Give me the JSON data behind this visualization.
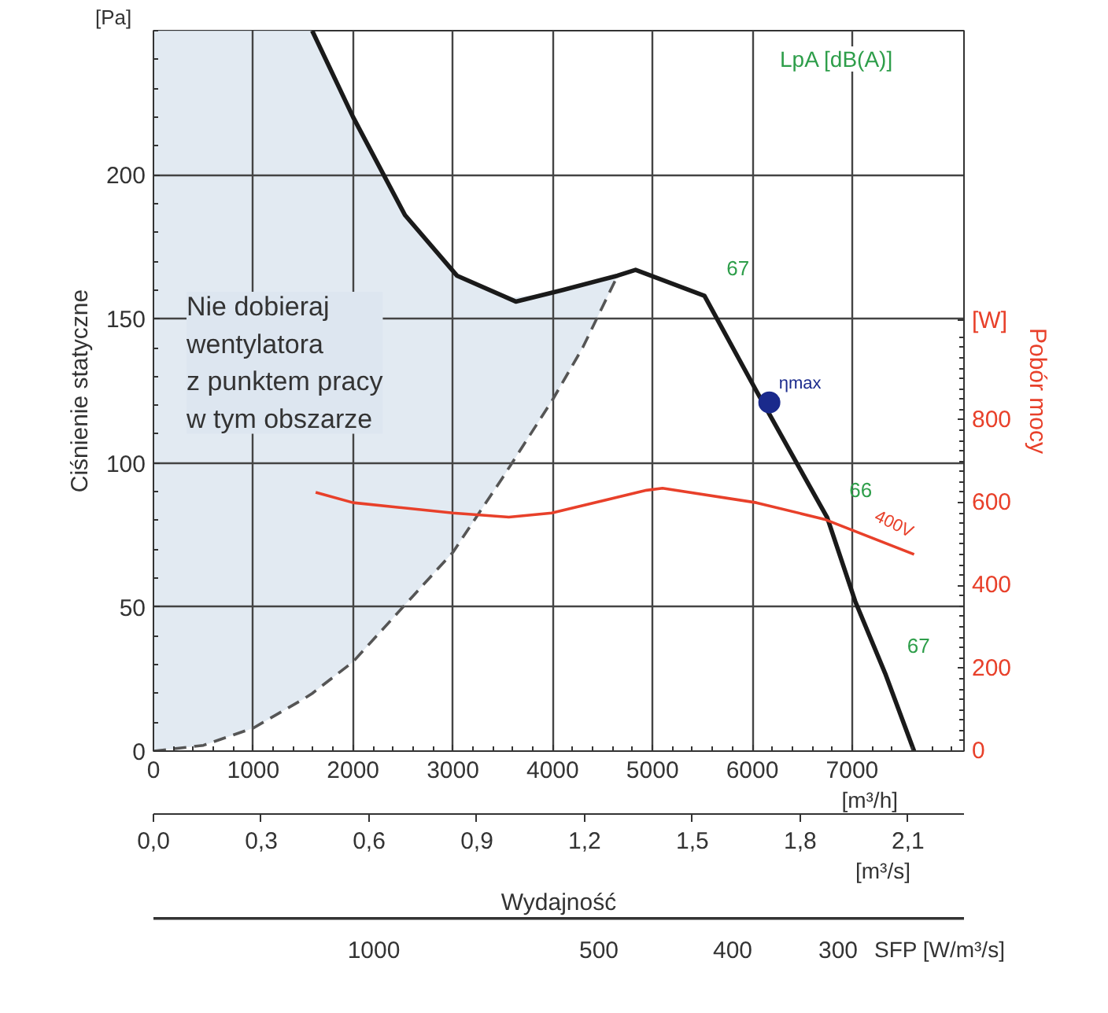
{
  "chart_data": {
    "type": "line",
    "xlabel": "Wydajność",
    "ylabel": "Ciśnienie statyczne",
    "y2label": "Pobór mocy",
    "xlim": [
      0,
      8120
    ],
    "xticks": [
      0,
      1000,
      2000,
      3000,
      4000,
      5000,
      6000,
      7000
    ],
    "x2lim": [
      0,
      2.2556
    ],
    "x2ticks": [
      {
        "value": 0,
        "label": "0,0"
      },
      {
        "value": 0.3,
        "label": "0,3"
      },
      {
        "value": 0.6,
        "label": "0,6"
      },
      {
        "value": 0.9,
        "label": "0,9"
      },
      {
        "value": 1.2,
        "label": "1,2"
      },
      {
        "value": 1.5,
        "label": "1,5"
      },
      {
        "value": 1.8,
        "label": "1,8"
      },
      {
        "value": 2.1,
        "label": "2,1"
      }
    ],
    "ylim": [
      0,
      250
    ],
    "yticks": [
      0,
      50,
      100,
      150,
      200
    ],
    "y2lim": [
      0,
      1740
    ],
    "y2ticks": [
      0,
      200,
      400,
      600,
      800
    ],
    "grid": true,
    "series": [
      {
        "color": "#555555",
        "line_style": "dashed",
        "x": [
          0,
          500,
          1000,
          1500,
          1590,
          2000,
          2500,
          3000,
          3500,
          4000,
          4300,
          4650
        ],
        "values": [
          0,
          2,
          8,
          18,
          20,
          31,
          50,
          69,
          95,
          122,
          140,
          165
        ],
        "lower": [
          0,
          2,
          8,
          18,
          20,
          31,
          50,
          69,
          95,
          122,
          140,
          165
        ],
        "upper": [
          250,
          250,
          250,
          250,
          250,
          220,
          187,
          166,
          157,
          159,
          161,
          165
        ]
      },
      {
        "color": "#1a1a1a",
        "x": [
          1590,
          2000,
          2520,
          3040,
          3630,
          4100,
          4650,
          4830,
          5520,
          6040,
          6750,
          7030,
          7330,
          7620
        ],
        "values": [
          250,
          220,
          186,
          165,
          156,
          160,
          165,
          167,
          158,
          125,
          81,
          52,
          27,
          0
        ]
      },
      {
        "name": "400V",
        "axis": "y2",
        "color": "#e8402a",
        "x": [
          1625,
          2000,
          3000,
          3560,
          3990,
          4940,
          5100,
          6040,
          6720,
          7620
        ],
        "values": [
          625,
          600,
          575,
          565,
          575,
          630,
          635,
          600,
          560,
          475
        ]
      },
      {
        "type": "scatter",
        "name": "ηmax",
        "color": "#1a2a8c",
        "marker": "circle",
        "x": [
          6170
        ],
        "values": [
          121
        ]
      }
    ],
    "annotations": [
      "[Pa]",
      "[W]",
      "[m³/h]",
      "[m³/s]",
      "SFP [W/m³/s]",
      "LpA [dB(A)]",
      "Nie dobieraj\nwentylatora\nz punktem pracy\nw tym obszarze",
      "1000",
      "500",
      "400",
      "300",
      {
        "text": "67",
        "x": 5520,
        "y": 158
      },
      {
        "text": "66",
        "x": 6750,
        "y": 81
      },
      {
        "text": "67",
        "x": 7330,
        "y": 27
      }
    ]
  }
}
